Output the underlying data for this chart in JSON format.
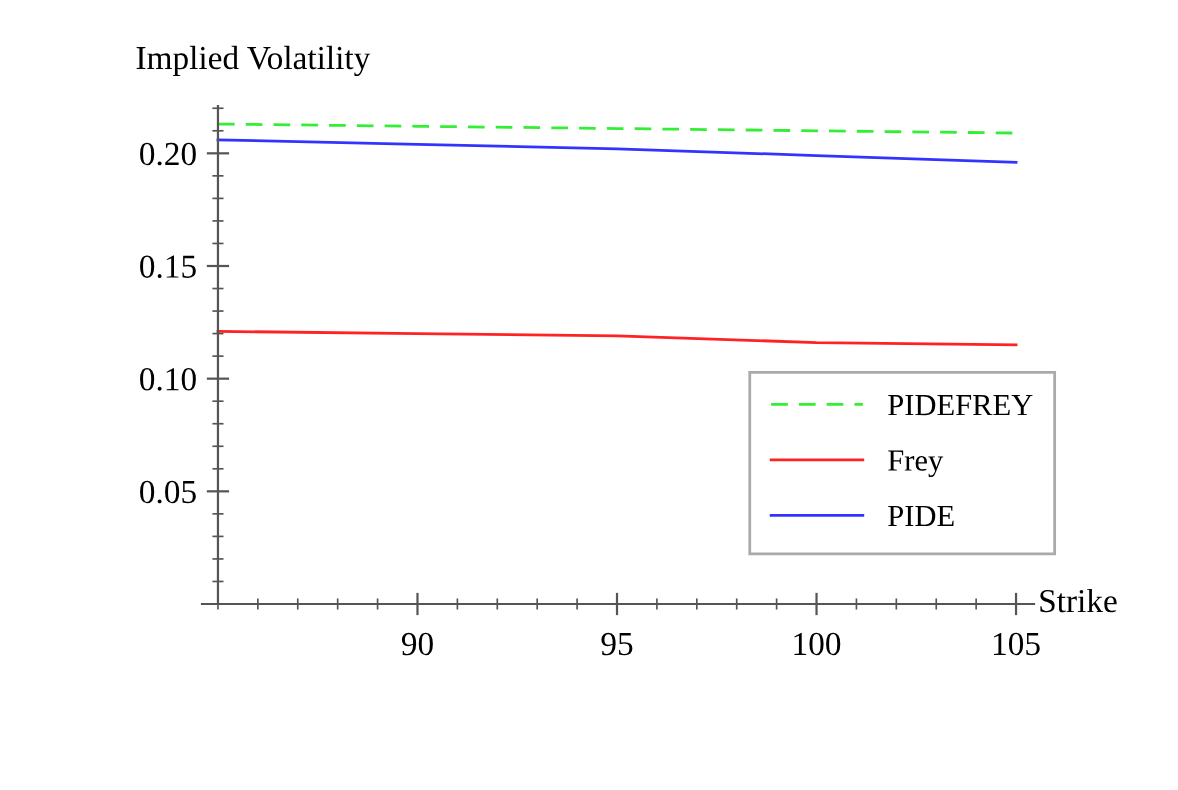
{
  "chart_data": {
    "type": "line",
    "xlabel": "Strike",
    "ylabel": "Implied Volatility",
    "x": [
      85,
      90,
      95,
      100,
      105
    ],
    "series": [
      {
        "name": "PIDEFREY",
        "color": "#33ee33",
        "line_style": "dashed",
        "values": [
          0.213,
          0.212,
          0.211,
          0.21,
          0.209
        ]
      },
      {
        "name": "Frey",
        "color": "#ff2222",
        "line_style": "solid",
        "values": [
          0.121,
          0.12,
          0.119,
          0.116,
          0.115
        ]
      },
      {
        "name": "PIDE",
        "color": "#3333ff",
        "line_style": "solid",
        "values": [
          0.206,
          0.204,
          0.202,
          0.199,
          0.196
        ]
      }
    ],
    "xlim": [
      84.6,
      105.45
    ],
    "ylim": [
      0,
      0.221
    ],
    "xticks": [
      90,
      95,
      100,
      105
    ],
    "yticks": [
      {
        "value": 0.05,
        "label": "0.05"
      },
      {
        "value": 0.1,
        "label": "0.10"
      },
      {
        "value": 0.15,
        "label": "0.15"
      },
      {
        "value": 0.2,
        "label": "0.20"
      }
    ],
    "grid": false,
    "legend": "bottom right"
  }
}
